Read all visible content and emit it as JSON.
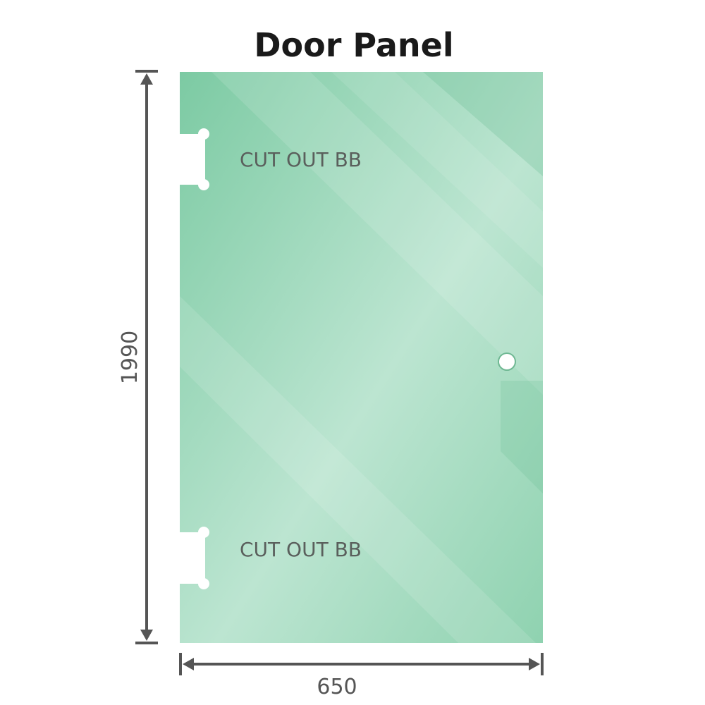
{
  "title": "Door Panel",
  "cutout_labels": [
    "CUT OUT BB",
    "CUT OUT BB"
  ],
  "dimensions": {
    "height": "1990",
    "width": "650"
  },
  "colors": {
    "glass": "#8fd1b0",
    "glass_light": "#bfe6d3",
    "dimension_line": "#555555"
  }
}
